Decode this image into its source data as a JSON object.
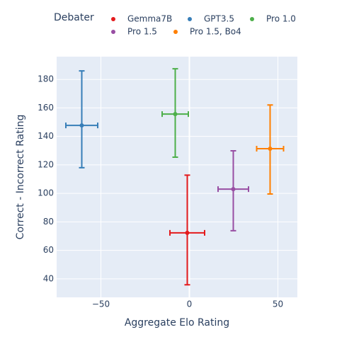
{
  "chart_data": {
    "type": "scatter",
    "x_label": "Aggregate Elo Rating",
    "y_label": "Correct - Incorrect Rating",
    "legend_title": "Debater",
    "legend_position": "top",
    "grid": true,
    "xlim": [
      -75,
      61
    ],
    "ylim": [
      27,
      196
    ],
    "xticks": [
      {
        "value": -50,
        "label": "−50"
      },
      0,
      50
    ],
    "yticks": [
      40,
      60,
      80,
      100,
      120,
      140,
      160,
      180
    ],
    "series": [
      {
        "name": "Gemma7B",
        "color": "#e41a1c",
        "x": [
          -1.2
        ],
        "values": [
          72.3
        ],
        "x_error": [
          9.8
        ],
        "y_error_plus": [
          40.5
        ],
        "y_error_minus": [
          36.5
        ]
      },
      {
        "name": "GPT3.5",
        "color": "#377eb8",
        "x": [
          -60.8
        ],
        "values": [
          147.7
        ],
        "x_error": [
          9
        ],
        "y_error_plus": [
          38.3
        ],
        "y_error_minus": [
          29.7
        ]
      },
      {
        "name": "Pro 1.0",
        "color": "#4daf4a",
        "x": [
          -8
        ],
        "values": [
          155.7
        ],
        "x_error": [
          7.4
        ],
        "y_error_plus": [
          31.8
        ],
        "y_error_minus": [
          30.3
        ]
      },
      {
        "name": "Pro 1.5",
        "color": "#984ea3",
        "x": [
          24.8
        ],
        "values": [
          103
        ],
        "x_error": [
          8.6
        ],
        "y_error_plus": [
          26.9
        ],
        "y_error_minus": [
          29.2
        ]
      },
      {
        "name": "Pro 1.5, Bo4",
        "color": "#ff7f00",
        "x": [
          45.6
        ],
        "values": [
          131.4
        ],
        "x_error": [
          7.6
        ],
        "y_error_plus": [
          30.7
        ],
        "y_error_minus": [
          31.8
        ]
      }
    ]
  }
}
